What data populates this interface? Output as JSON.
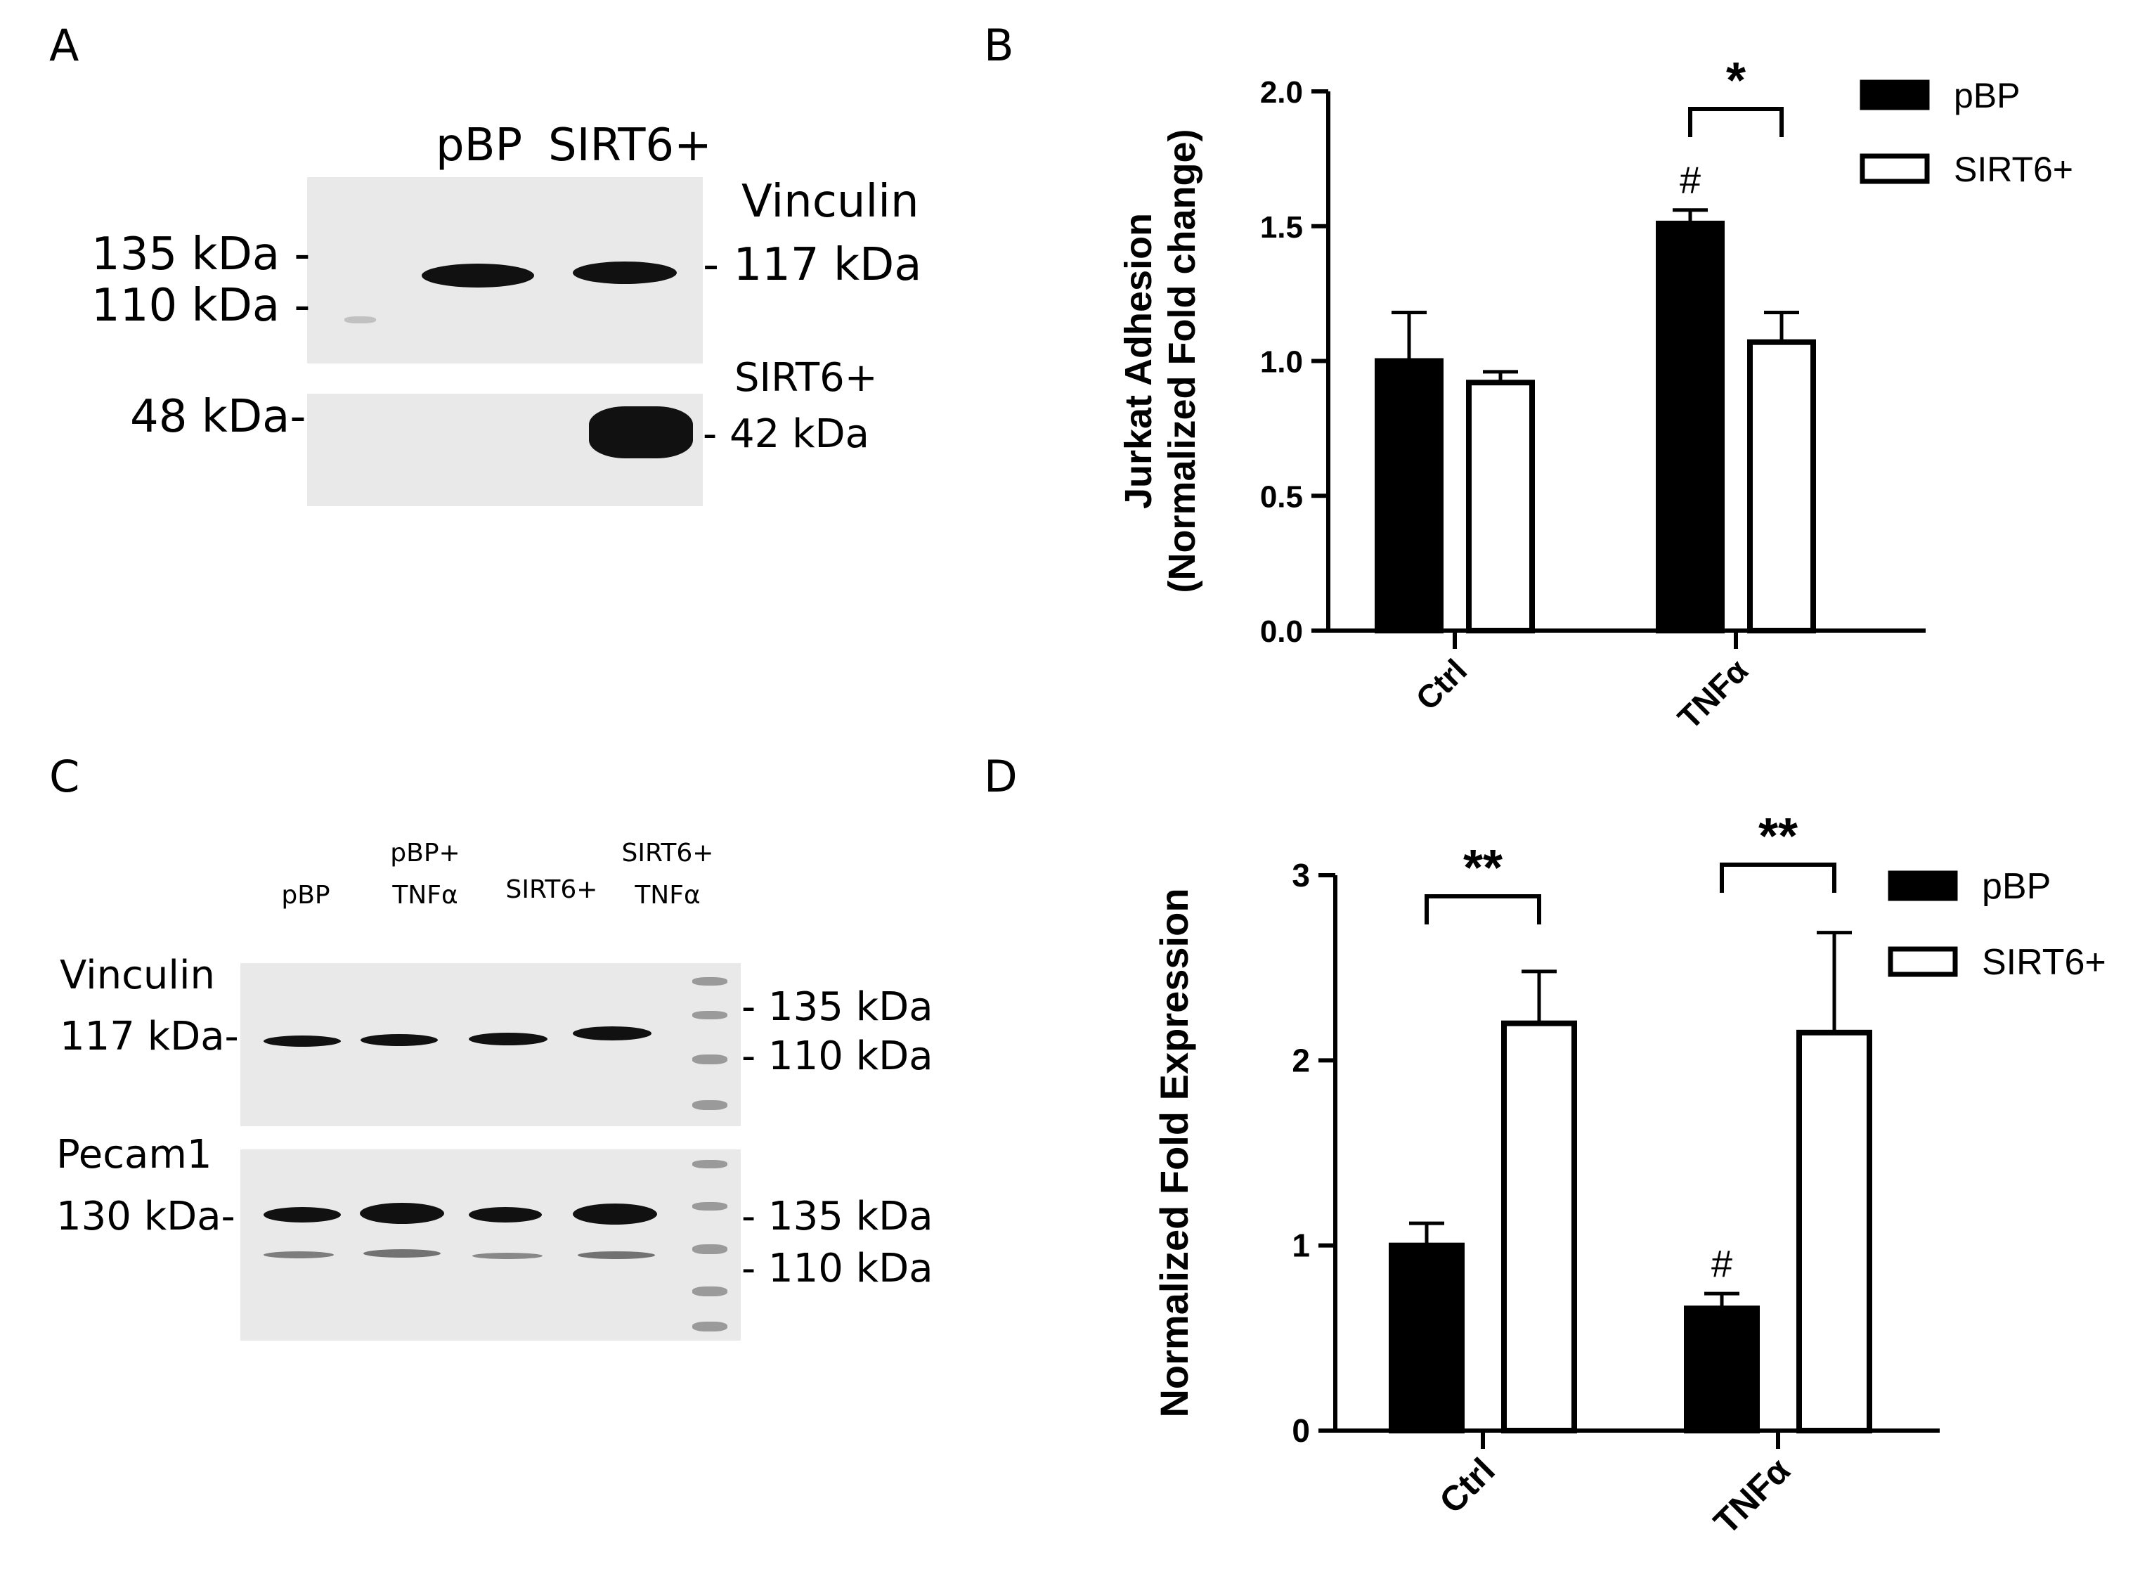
{
  "panels": {
    "A": {
      "letter": "A",
      "lanes": [
        "pBP",
        "SIRT6+"
      ],
      "top_right": [
        "Vinculin",
        "- 117 kDa"
      ],
      "top_left": [
        "135 kDa -",
        "110 kDa -"
      ],
      "bottom_right": [
        "SIRT6+",
        "- 42 kDa"
      ],
      "bottom_left": "48 kDa-"
    },
    "B": {
      "letter": "B"
    },
    "C": {
      "letter": "C",
      "lanes": [
        "pBP",
        "pBP+",
        "TNFα",
        "SIRT6+",
        "SIRT6+",
        "TNFα"
      ],
      "vinculin_label": "Vinculin",
      "vinculin_kda": "117 kDa-",
      "vinculin_markers": [
        "- 135 kDa",
        "- 110 kDa"
      ],
      "pecam_label": "Pecam1",
      "pecam_kda": "130 kDa-",
      "pecam_markers": [
        "- 135 kDa",
        "- 110 kDa"
      ]
    },
    "D": {
      "letter": "D"
    }
  },
  "chart_data": [
    {
      "type": "bar",
      "panel": "B",
      "ylabel_line1": "Jurkat Adhesion",
      "ylabel_line2": "(Normalized Fold change)",
      "categories": [
        "Ctrl",
        "TNFα"
      ],
      "series": [
        {
          "name": "pBP",
          "values": [
            1.0,
            1.51
          ],
          "errors": [
            0.18,
            0.05
          ],
          "fill": "#000000"
        },
        {
          "name": "SIRT6+",
          "values": [
            0.92,
            1.07
          ],
          "errors": [
            0.04,
            0.11
          ],
          "fill": "#ffffff"
        }
      ],
      "ylim": [
        0,
        2.0
      ],
      "yticks": [
        "0.0",
        "0.5",
        "1.0",
        "1.5",
        "2.0"
      ],
      "significance": [
        {
          "category": "TNFα",
          "label": "*"
        }
      ],
      "markers": [
        {
          "category": "TNFα",
          "series": "pBP",
          "label": "#"
        }
      ],
      "legend": "top-right"
    },
    {
      "type": "bar",
      "panel": "D",
      "ylabel_line1": "Normalized Fold Expression",
      "categories": [
        "Ctrl",
        "TNFα"
      ],
      "series": [
        {
          "name": "pBP",
          "values": [
            1.0,
            0.66
          ],
          "errors": [
            0.12,
            0.08
          ],
          "fill": "#000000"
        },
        {
          "name": "SIRT6+",
          "values": [
            2.2,
            2.15
          ],
          "errors": [
            0.28,
            0.54
          ],
          "fill": "#ffffff"
        }
      ],
      "ylim": [
        0,
        3
      ],
      "yticks": [
        "0",
        "1",
        "2",
        "3"
      ],
      "significance": [
        {
          "category": "Ctrl",
          "label": "**"
        },
        {
          "category": "TNFα",
          "label": "**"
        }
      ],
      "markers": [
        {
          "category": "TNFα",
          "series": "pBP",
          "label": "#"
        }
      ],
      "legend": "top-right"
    }
  ]
}
